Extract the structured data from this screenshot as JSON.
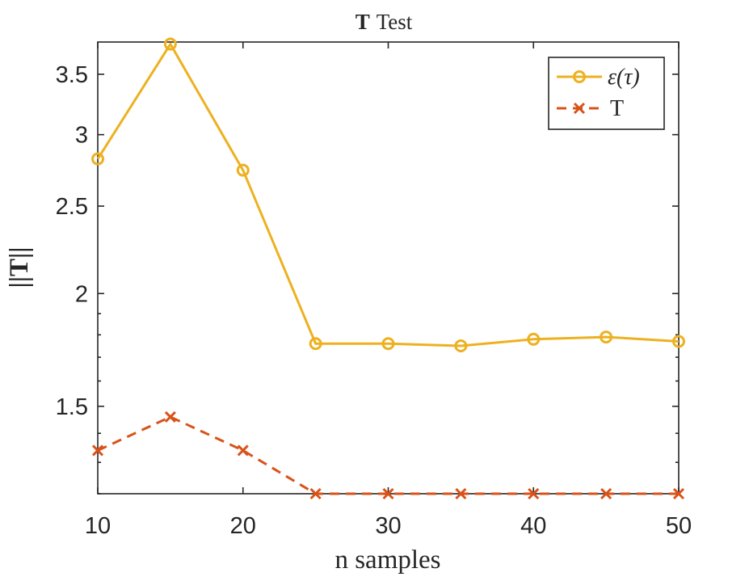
{
  "colors": {
    "background": "#ffffff",
    "axes": "#262626",
    "series_epsilon": "#EDB120",
    "series_T": "#D95319"
  },
  "chart_data": {
    "type": "line",
    "title_bold": "T",
    "title_rest": "Test",
    "xlabel": "n samples",
    "ylabel": "||T||",
    "xlim": [
      10,
      50
    ],
    "ylim": [
      1.2,
      3.8
    ],
    "yscale": "log",
    "grid": false,
    "box": true,
    "legend_location": "top-right",
    "xticks": [
      10,
      20,
      30,
      40,
      50
    ],
    "xtick_labels": [
      "10",
      "20",
      "30",
      "40",
      "50"
    ],
    "yticks": [
      1.5,
      2,
      2.5,
      3,
      3.5
    ],
    "ytick_labels": [
      "1.5",
      "2",
      "2.5",
      "3",
      "3.5"
    ],
    "x": [
      10,
      15,
      20,
      25,
      30,
      35,
      40,
      45,
      50
    ],
    "series": [
      {
        "name": "ε(τ)",
        "color": "#EDB120",
        "marker": "circle",
        "line_style": "solid",
        "values": [
          2.82,
          3.78,
          2.74,
          1.76,
          1.76,
          1.75,
          1.78,
          1.79,
          1.77
        ]
      },
      {
        "name": "T",
        "color": "#D95319",
        "marker": "x",
        "line_style": "dashed",
        "values": [
          1.34,
          1.46,
          1.34,
          1.2,
          1.2,
          1.2,
          1.2,
          1.2,
          1.2
        ]
      }
    ]
  }
}
